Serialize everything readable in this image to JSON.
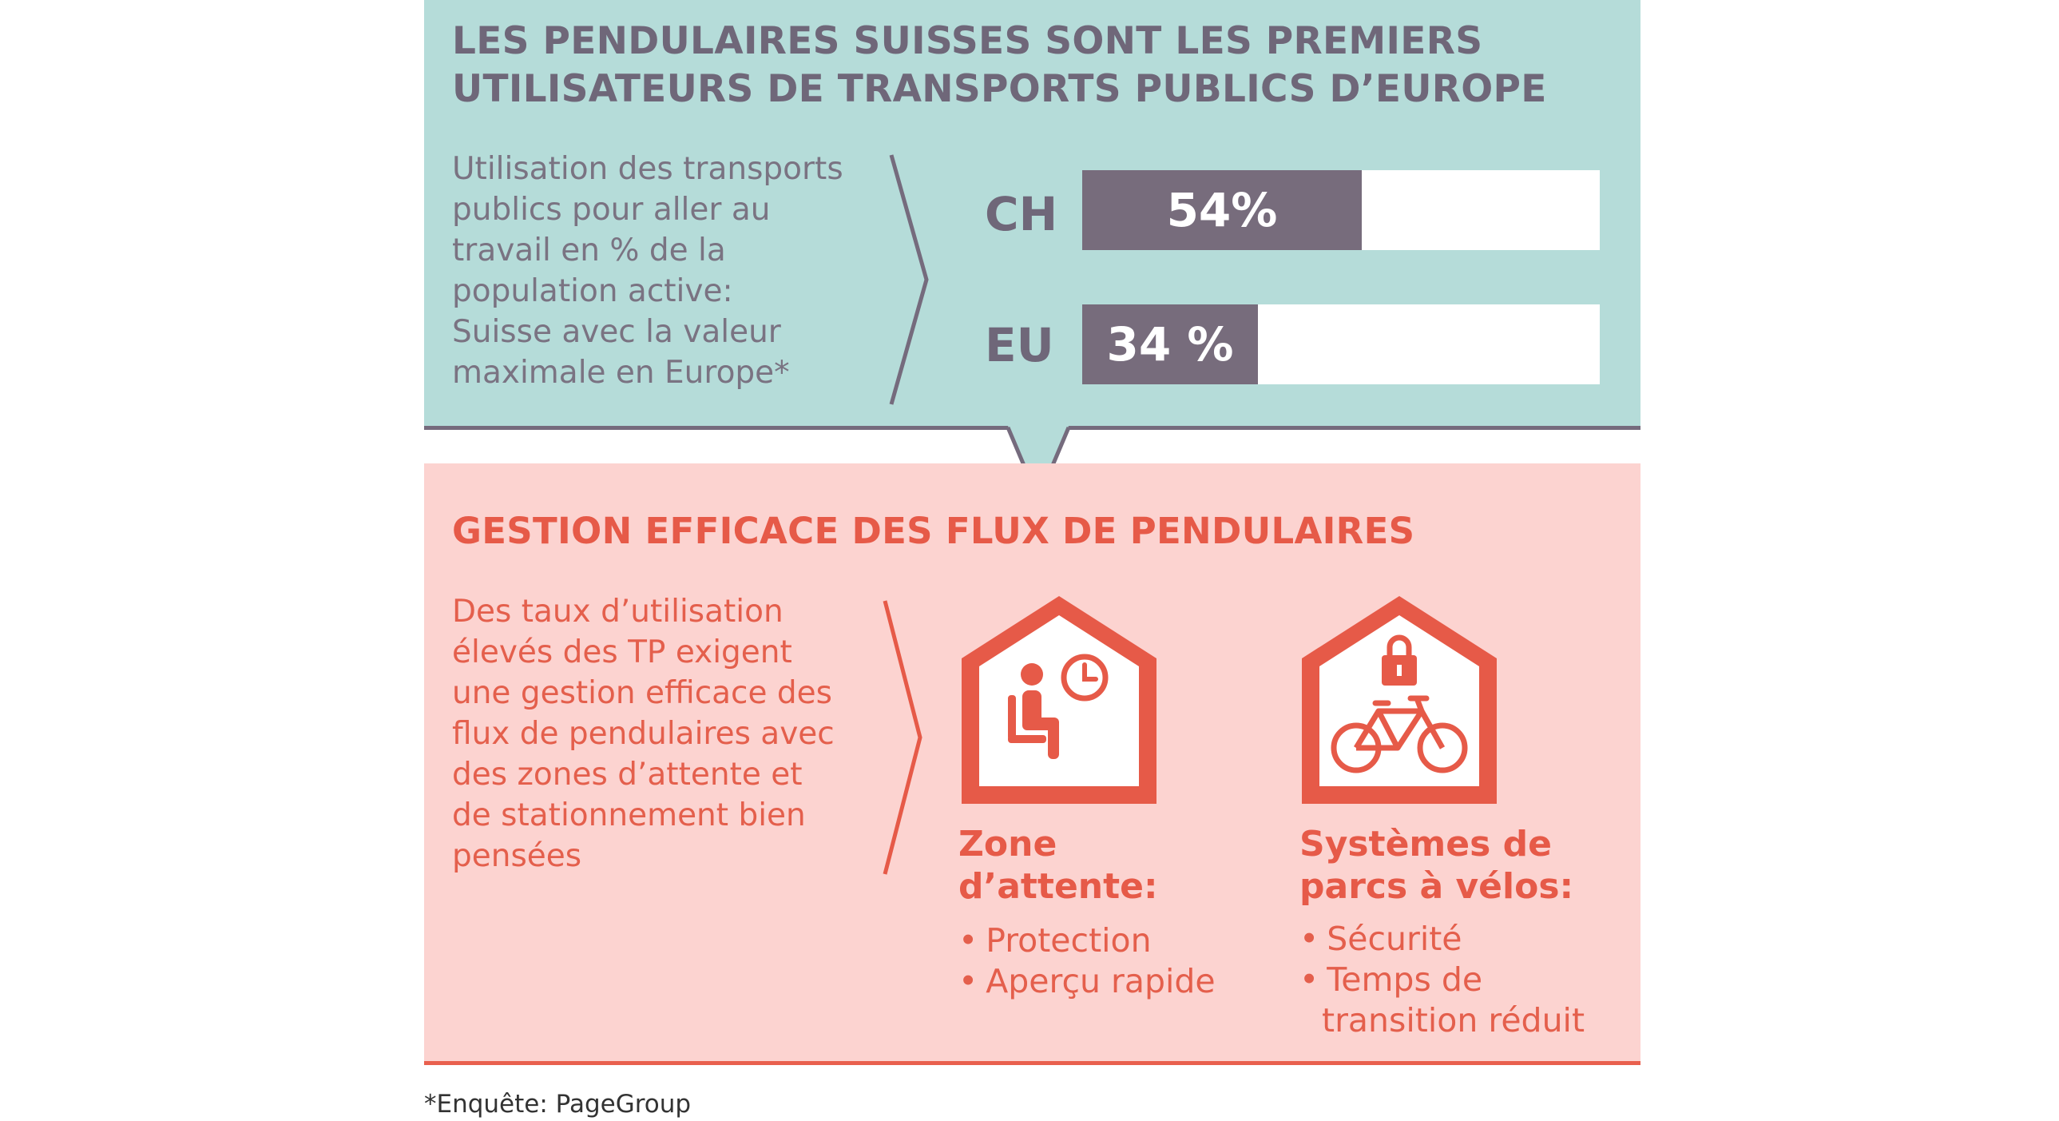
{
  "chart_data": {
    "type": "bar",
    "title_lines": [
      "LES PENDULAIRES SUISSES SONT LES PREMIERS",
      "UTILISATEURS DE TRANSPORTS PUBLICS D’EUROPE"
    ],
    "description_lines": [
      "Utilisation des transports",
      "publics pour aller au",
      "travail en % de la",
      "population active:",
      "Suisse avec la valeur",
      "maximale en Europe*"
    ],
    "categories": [
      "CH",
      "EU"
    ],
    "values": [
      54,
      34
    ],
    "value_labels": [
      "54%",
      "34 %"
    ],
    "ylim": [
      0,
      100
    ]
  },
  "colors": {
    "teal_panel": "#b5dcd9",
    "bar": "#776c7c",
    "pink_panel": "#fcd3d0",
    "accent_red": "#e65a48"
  },
  "section2": {
    "title": "GESTION EFFICACE DES FLUX DE PENDULAIRES",
    "description_lines": [
      "Des taux d’utilisation",
      "élevés des TP exigent",
      "une gestion efficace des",
      "flux de pendulaires avec",
      "des zones d’attente et",
      "de stationnement bien",
      "pensées"
    ],
    "items": [
      {
        "icon": "waiting-person-clock-icon",
        "title_lines": [
          "Zone",
          "d’attente:"
        ],
        "bullets": [
          [
            "Protection"
          ],
          [
            "Aperçu rapide"
          ]
        ]
      },
      {
        "icon": "bike-lock-icon",
        "title_lines": [
          "Systèmes de",
          "parcs à vélos:"
        ],
        "bullets": [
          [
            "Sécurité"
          ],
          [
            "Temps de",
            "transition réduit"
          ]
        ]
      }
    ]
  },
  "footnote": "*Enquête: PageGroup"
}
